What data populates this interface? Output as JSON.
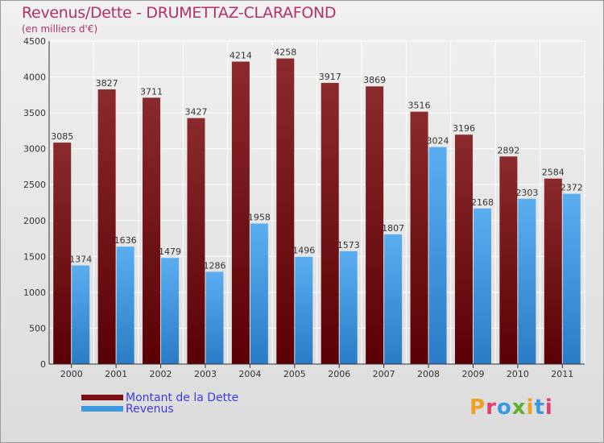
{
  "title": "Revenus/Dette - DRUMETTAZ-CLARAFOND",
  "subtitle": "(en milliers d'€)",
  "brand": "Proxiti",
  "colors": {
    "title": "#b0306c",
    "dette": "#7b0f14",
    "revenus": "#3a98e0",
    "legend_text": "#3b3bd9"
  },
  "legend": [
    {
      "label": "Montant de la Dette",
      "color": "#7b0f14"
    },
    {
      "label": "Revenus",
      "color": "#3a98e0"
    }
  ],
  "chart_data": {
    "type": "bar",
    "categories": [
      "2000",
      "2001",
      "2002",
      "2003",
      "2004",
      "2005",
      "2006",
      "2007",
      "2008",
      "2009",
      "2010",
      "2011"
    ],
    "series": [
      {
        "name": "Montant de la Dette",
        "values": [
          3085,
          3827,
          3711,
          3427,
          4214,
          4258,
          3917,
          3869,
          3516,
          3196,
          2892,
          2584
        ]
      },
      {
        "name": "Revenus",
        "values": [
          1374,
          1636,
          1479,
          1286,
          1958,
          1496,
          1573,
          1807,
          3024,
          2168,
          2303,
          2372
        ]
      }
    ],
    "ylim": [
      0,
      4500
    ],
    "yticks": [
      0,
      500,
      1000,
      1500,
      2000,
      2500,
      3000,
      3500,
      4000,
      4500
    ],
    "grid": true,
    "legend_position": "bottom-left"
  }
}
